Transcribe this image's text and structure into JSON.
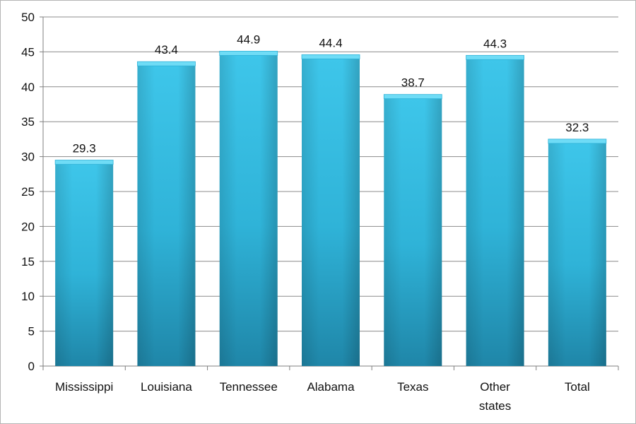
{
  "chart_data": {
    "type": "bar",
    "title": "",
    "xlabel": "",
    "ylabel": "",
    "categories": [
      [
        "Mississippi"
      ],
      [
        "Louisiana"
      ],
      [
        "Tennessee"
      ],
      [
        "Alabama"
      ],
      [
        "Texas"
      ],
      [
        "Other",
        "states"
      ],
      [
        "Total"
      ]
    ],
    "values": [
      29.3,
      43.4,
      44.9,
      44.4,
      38.7,
      44.3,
      32.3
    ],
    "data_labels": [
      "29.3",
      "43.4",
      "44.9",
      "44.4",
      "38.7",
      "44.3",
      "32.3"
    ],
    "ylim": [
      0,
      50
    ],
    "yticks": [
      0,
      5,
      10,
      15,
      20,
      25,
      30,
      35,
      40,
      45,
      50
    ],
    "grid": true,
    "legend": "none",
    "colors": {
      "bar_light": "#3ec6ea",
      "bar_mid": "#2fb3d8",
      "bar_dark": "#1f86a8",
      "bar_top": "#6fdcf6",
      "grid": "#8c8c8c",
      "axis": "#7f7f7f"
    }
  }
}
